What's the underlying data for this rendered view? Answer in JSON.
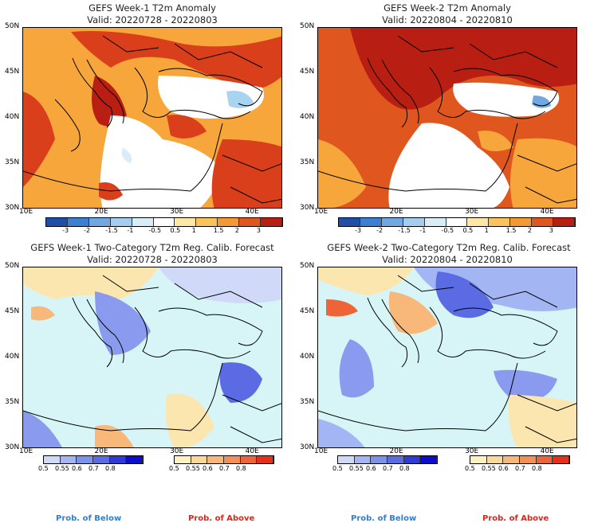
{
  "panels": [
    {
      "title": "GEFS Week-1 T2m Anomaly",
      "valid": "Valid: 20220728 - 20220803"
    },
    {
      "title": "GEFS Week-2 T2m Anomaly",
      "valid": "Valid: 20220804 - 20220810"
    },
    {
      "title": "GEFS Week-1 Two-Category T2m Reg. Calib. Forecast",
      "valid": "Valid: 20220728 - 20220803"
    },
    {
      "title": "GEFS Week-2 Two-Category T2m Reg. Calib. Forecast",
      "valid": "Valid: 20220804 - 20220810"
    }
  ],
  "lat_ticks": [
    "50N",
    "45N",
    "40N",
    "35N",
    "30N"
  ],
  "lon_ticks": [
    "10E",
    "20E",
    "30E",
    "40E"
  ],
  "anomaly_colorbar": {
    "labels": [
      "-3",
      "-2",
      "-1.5",
      "-1",
      "-0.5",
      "0.5",
      "1",
      "1.5",
      "2",
      "3"
    ],
    "colors": [
      "#1f4fa8",
      "#3d7fd0",
      "#72a8e2",
      "#a5cdef",
      "#d9edf8",
      "#ffffff",
      "#fde8a8",
      "#fbc45a",
      "#f39a34",
      "#e0561f",
      "#b81e12"
    ]
  },
  "prob_below_colorbar": {
    "labels": [
      "0.5",
      "0.55",
      "0.6",
      "0.7",
      "0.8"
    ],
    "colors": [
      "#d0daf8",
      "#a3b5f2",
      "#7d92ea",
      "#5a6be3",
      "#2f3ad9",
      "#0b0ed0"
    ]
  },
  "prob_above_colorbar": {
    "labels": [
      "0.5",
      "0.55",
      "0.6",
      "0.7",
      "0.8"
    ],
    "colors": [
      "#fff1c2",
      "#fcd99b",
      "#f8b87a",
      "#f39058",
      "#ee6337",
      "#e6301c"
    ]
  },
  "legend": {
    "below": "Prob. of Below",
    "above": "Prob. of Above",
    "below_color": "#2e7fd8",
    "above_color": "#e02418"
  },
  "map_colors": {
    "anom_base": "#f6a63a",
    "anom_hot": "#d83f1a",
    "anom_hotter": "#b81e12",
    "anom_neutral": "#ffffff",
    "anom_cool": "#a9d4f1",
    "prob_base": "#d7f5f7",
    "prob_blue": "#8a9aee",
    "prob_orange": "#f8b87a",
    "prob_yellow": "#fce6b0"
  }
}
